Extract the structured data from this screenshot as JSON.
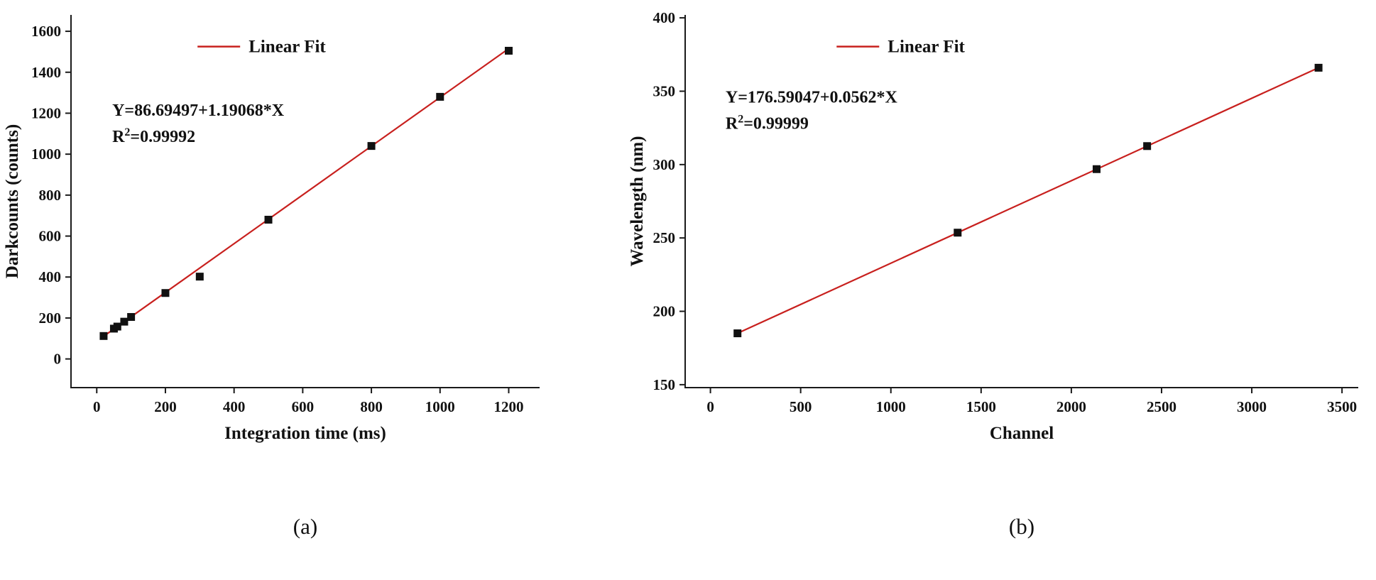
{
  "style": {
    "background": "#ffffff",
    "axis_color": "#1a1a1a",
    "line_color": "#c8201e",
    "point_color": "#111111"
  },
  "chart_data": [
    {
      "type": "scatter",
      "title": "",
      "xlabel": "Integration time (ms)",
      "ylabel": "Darkcounts (counts)",
      "xlim": [
        -75,
        1290
      ],
      "ylim": [
        -140,
        1680
      ],
      "xticks": [
        0,
        200,
        400,
        600,
        800,
        1000,
        1200
      ],
      "yticks": [
        0,
        200,
        400,
        600,
        800,
        1000,
        1200,
        1400,
        1600
      ],
      "grid": false,
      "x": [
        20,
        50,
        60,
        80,
        100,
        200,
        300,
        500,
        800,
        1000,
        1200
      ],
      "y": [
        112,
        148,
        158,
        182,
        205,
        322,
        402,
        680,
        1040,
        1280,
        1505
      ],
      "fit": {
        "intercept": 86.69497,
        "slope": 1.19068
      },
      "fit_x": [
        15,
        1205
      ],
      "legend": {
        "label": "Linear Fit",
        "fx": 0.27,
        "fy": 0.085
      },
      "annotation": {
        "line1": "Y=86.69497+1.19068*X",
        "r2_base": "R",
        "r2_sup": "2",
        "r2_rest": "=0.99992",
        "fx": 0.088,
        "fy": 0.27
      },
      "caption": "(a)"
    },
    {
      "type": "scatter",
      "title": "",
      "xlabel": "Channel",
      "ylabel": "Wavelength (nm)",
      "xlim": [
        -140,
        3590
      ],
      "ylim": [
        148,
        402
      ],
      "xticks": [
        0,
        500,
        1000,
        1500,
        2000,
        2500,
        3000,
        3500
      ],
      "yticks": [
        150,
        200,
        250,
        300,
        350,
        400
      ],
      "grid": false,
      "x": [
        150,
        1370,
        2140,
        2420,
        3370
      ],
      "y": [
        185,
        253.6,
        296.9,
        312.6,
        366
      ],
      "fit": {
        "intercept": 176.59047,
        "slope": 0.0562
      },
      "fit_x": [
        140,
        3380
      ],
      "legend": {
        "label": "Linear Fit",
        "fx": 0.225,
        "fy": 0.085
      },
      "annotation": {
        "line1": "Y=176.59047+0.0562*X",
        "r2_base": "R",
        "r2_sup": "2",
        "r2_rest": "=0.99999",
        "fx": 0.06,
        "fy": 0.235
      },
      "caption": "(b)"
    }
  ]
}
